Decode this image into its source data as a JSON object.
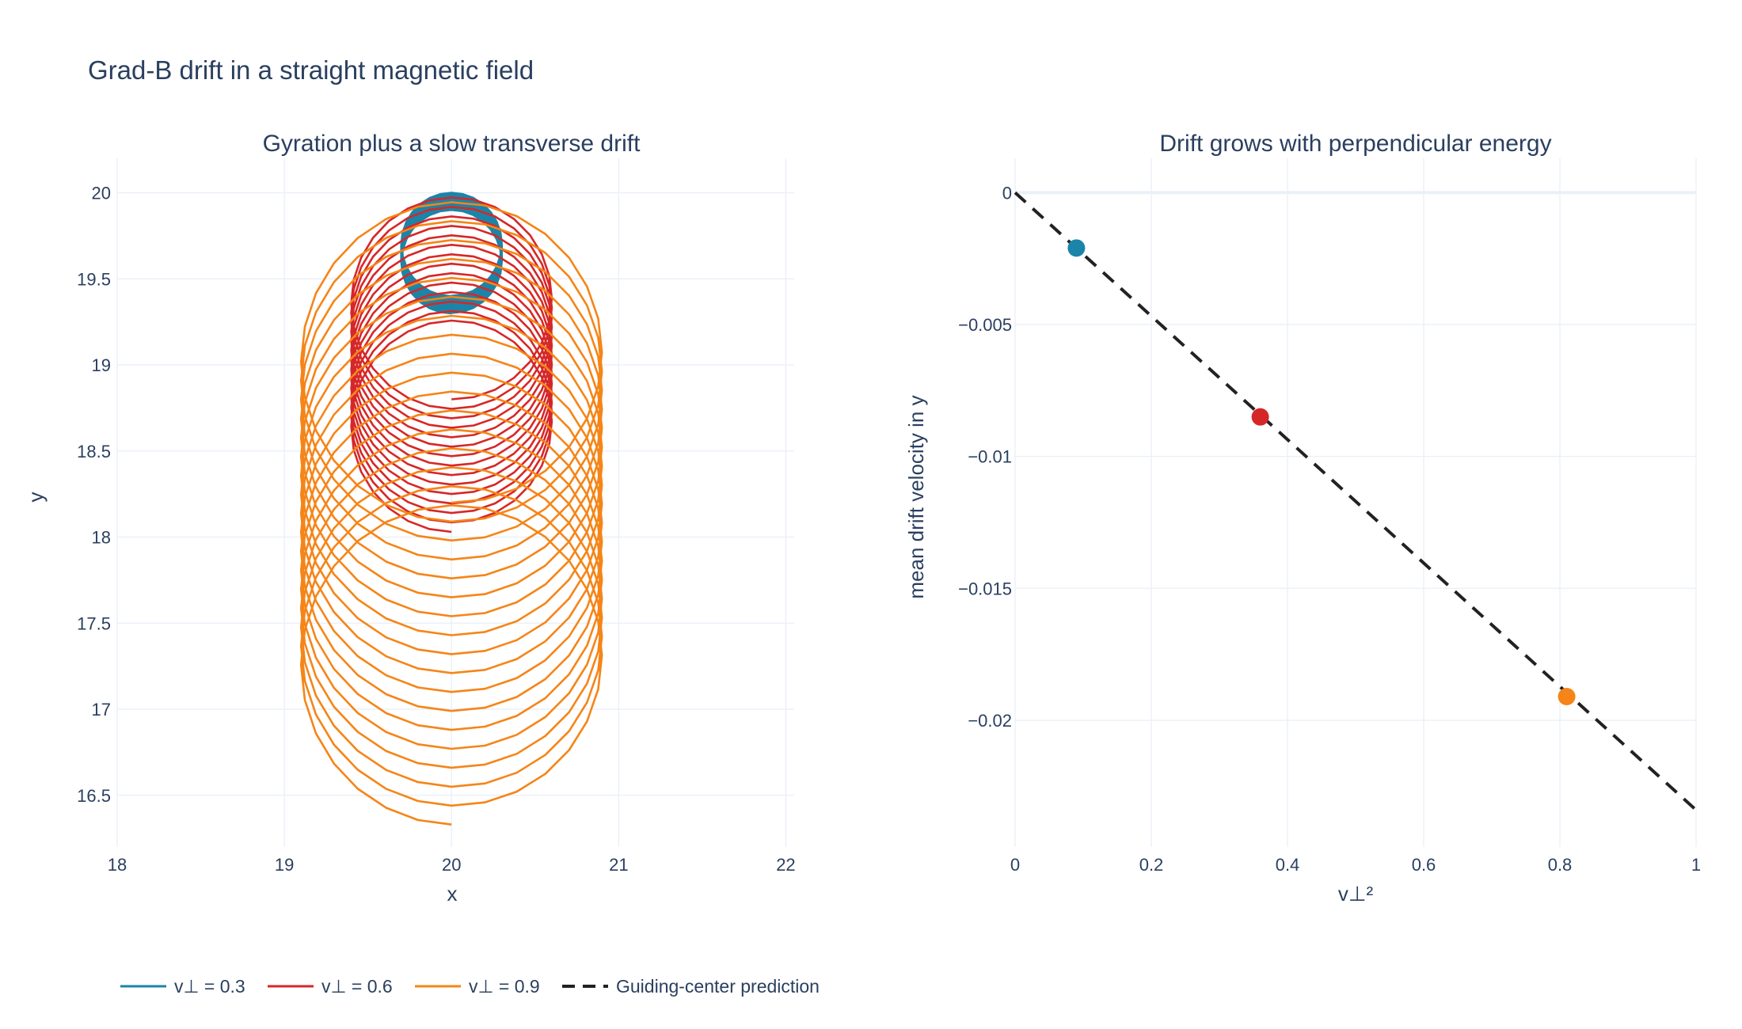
{
  "title": "Grad-B drift in a straight magnetic field",
  "colors": {
    "vperp_0_3": "#1a85a8",
    "vperp_0_6": "#d62728",
    "vperp_0_9": "#f58518",
    "prediction": "#222222",
    "grid": "#ebf0f8",
    "text": "#2a3f5f"
  },
  "chart_data": [
    {
      "type": "line",
      "title": "Gyration plus a slow transverse drift",
      "xlabel": "x",
      "ylabel": "y",
      "xlim": [
        18,
        22.05
      ],
      "ylim": [
        16.2,
        20.2
      ],
      "xticks": [
        18,
        19,
        20,
        21,
        22
      ],
      "yticks": [
        16.5,
        17,
        17.5,
        18,
        18.5,
        19,
        19.5,
        20
      ],
      "grid": true,
      "series": [
        {
          "name": "v⊥ = 0.3",
          "color": "#1a85a8",
          "center_x": 20.0,
          "start_y": 19.7,
          "end_y": 19.6,
          "radius": 0.3,
          "turns": 40
        },
        {
          "name": "v⊥ = 0.6",
          "color": "#d62728",
          "center_x": 20.0,
          "start_y": 19.4,
          "end_y": 18.63,
          "radius": 0.6,
          "turns": 14
        },
        {
          "name": "v⊥ = 0.9",
          "color": "#f58518",
          "center_x": 20.0,
          "start_y": 19.1,
          "end_y": 17.23,
          "radius": 0.9,
          "turns": 17
        }
      ]
    },
    {
      "type": "scatter",
      "title": "Drift grows with perpendicular energy",
      "xlabel": "v⊥²",
      "ylabel": "mean drift velocity in y",
      "xlim": [
        0,
        1
      ],
      "ylim": [
        -0.0248,
        0.0013
      ],
      "xticks": [
        0,
        0.2,
        0.4,
        0.6,
        0.8,
        1
      ],
      "yticks": [
        0,
        -0.005,
        -0.01,
        -0.015,
        -0.02
      ],
      "ytick_labels": [
        "0",
        "−0.005",
        "−0.01",
        "−0.015",
        "−0.02"
      ],
      "grid": true,
      "points": [
        {
          "x": 0.09,
          "y": -0.0021,
          "color": "#1a85a8"
        },
        {
          "x": 0.36,
          "y": -0.0085,
          "color": "#d62728"
        },
        {
          "x": 0.81,
          "y": -0.0191,
          "color": "#f58518"
        }
      ],
      "prediction": {
        "name": "Guiding-center prediction",
        "x": [
          0,
          1
        ],
        "y": [
          0,
          -0.0234
        ],
        "dash": "dash",
        "color": "#222222"
      }
    }
  ],
  "legend": {
    "items": [
      {
        "label": "v⊥ = 0.3",
        "color": "#1a85a8",
        "dash": false
      },
      {
        "label": "v⊥ = 0.6",
        "color": "#d62728",
        "dash": false
      },
      {
        "label": "v⊥ = 0.9",
        "color": "#f58518",
        "dash": false
      },
      {
        "label": "Guiding-center prediction",
        "color": "#222222",
        "dash": true
      }
    ]
  }
}
